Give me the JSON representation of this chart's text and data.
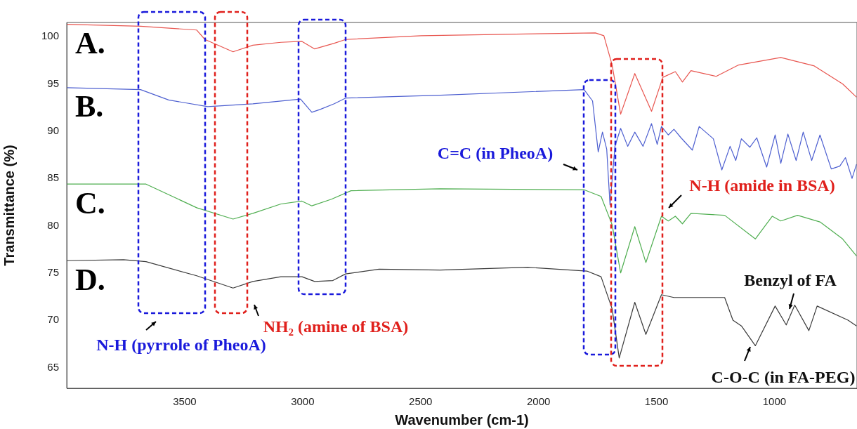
{
  "chart_data": {
    "type": "line",
    "xlabel": "Wavenumber (cm-1)",
    "ylabel": "Transmittance (%)",
    "xlim": [
      4000,
      650
    ],
    "ylim": [
      62.8,
      101.5
    ],
    "xticks": [
      3500,
      3000,
      2500,
      2000,
      1500,
      1000
    ],
    "yticks": [
      65,
      70,
      75,
      80,
      85,
      90,
      95,
      100
    ],
    "marker": "none",
    "series": [
      {
        "name": "A.",
        "color": "#e8554f",
        "x": [
          4000,
          3687,
          3449,
          3414,
          3295,
          3211,
          3092,
          3003,
          2949,
          2866,
          2818,
          2497,
          1759,
          1723,
          1688,
          1652,
          1592,
          1521,
          1473,
          1420,
          1390,
          1354,
          1247,
          1152,
          973,
          831,
          711,
          652
        ],
        "values": [
          101.3,
          101.1,
          100.7,
          99.7,
          98.4,
          99.1,
          99.4,
          99.5,
          98.7,
          99.3,
          99.7,
          100.1,
          100.4,
          100.1,
          97.0,
          91.8,
          96.1,
          92.1,
          95.7,
          96.3,
          95.2,
          96.4,
          95.8,
          97.0,
          97.8,
          96.9,
          95.0,
          93.6
        ]
      },
      {
        "name": "B.",
        "color": "#4d5fd0",
        "x": [
          4000,
          3687,
          3568,
          3402,
          3211,
          3009,
          2961,
          2926,
          2866,
          2818,
          2417,
          1807,
          1771,
          1747,
          1729,
          1711,
          1697,
          1676,
          1652,
          1622,
          1592,
          1557,
          1521,
          1497,
          1479,
          1450,
          1426,
          1396,
          1348,
          1319,
          1259,
          1223,
          1188,
          1164,
          1140,
          1104,
          1075,
          1033,
          997,
          973,
          943,
          908,
          878,
          842,
          807,
          759,
          723,
          699,
          671,
          652
        ],
        "values": [
          94.6,
          94.4,
          93.3,
          92.6,
          92.9,
          93.4,
          92.0,
          92.3,
          92.9,
          93.5,
          93.8,
          94.4,
          93.2,
          87.8,
          89.9,
          88.1,
          82.2,
          88.4,
          90.3,
          88.4,
          89.9,
          88.4,
          90.8,
          88.6,
          90.5,
          89.6,
          90.2,
          89.3,
          88.0,
          90.5,
          89.2,
          85.9,
          88.4,
          86.9,
          89.2,
          88.3,
          89.3,
          86.2,
          89.6,
          86.6,
          89.7,
          86.9,
          89.9,
          86.9,
          89.6,
          86.0,
          86.3,
          87.2,
          85.0,
          86.5
        ]
      },
      {
        "name": "C.",
        "color": "#4fae50",
        "x": [
          4000,
          3664,
          3449,
          3295,
          3211,
          3092,
          3003,
          2961,
          2878,
          2795,
          2417,
          1807,
          1735,
          1688,
          1652,
          1592,
          1545,
          1479,
          1450,
          1420,
          1390,
          1354,
          1211,
          1081,
          1009,
          973,
          902,
          807,
          711,
          652
        ],
        "values": [
          84.4,
          84.4,
          81.9,
          80.7,
          81.3,
          82.3,
          82.6,
          82.1,
          82.8,
          83.7,
          83.9,
          83.8,
          83.1,
          80.1,
          75.0,
          79.9,
          76.1,
          81.0,
          80.5,
          81.0,
          80.2,
          81.3,
          81.1,
          78.6,
          81.0,
          80.5,
          81.1,
          80.4,
          78.6,
          76.8
        ]
      },
      {
        "name": "D.",
        "color": "#3a3a3a",
        "x": [
          4000,
          3759,
          3664,
          3449,
          3295,
          3211,
          3092,
          3003,
          2949,
          2872,
          2818,
          2676,
          2417,
          2045,
          1795,
          1735,
          1688,
          1658,
          1592,
          1545,
          1479,
          1426,
          1307,
          1211,
          1176,
          1140,
          1081,
          997,
          950,
          914,
          854,
          819,
          688,
          652
        ],
        "values": [
          76.3,
          76.4,
          76.2,
          74.7,
          73.4,
          74.1,
          74.6,
          74.6,
          74.1,
          74.2,
          74.9,
          75.4,
          75.3,
          75.6,
          75.2,
          74.6,
          71.2,
          66.0,
          71.9,
          68.5,
          72.7,
          72.4,
          72.4,
          72.4,
          70.0,
          69.4,
          67.3,
          71.5,
          69.5,
          71.6,
          68.9,
          71.5,
          70.0,
          69.4
        ]
      }
    ],
    "annotations": [
      "N-H (pyrrole of PheoA)",
      "NH₂ (amine of BSA)",
      "C=C (in PheoA)",
      "N-H (amide in BSA)",
      "Benzyl of FA",
      "C-O-C (in FA-PEG)"
    ]
  }
}
